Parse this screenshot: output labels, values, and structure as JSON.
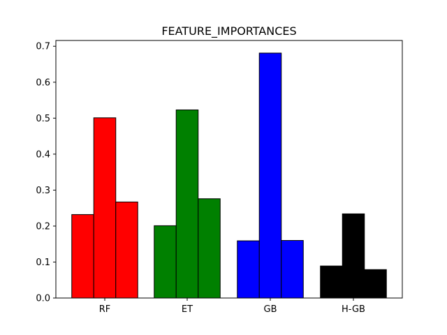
{
  "chart_data": {
    "type": "bar",
    "title": "FEATURE_IMPORTANCES",
    "xlabel": "",
    "ylabel": "",
    "categories": [
      "RF",
      "ET",
      "GB",
      "H-GB"
    ],
    "bars_per_group": 3,
    "groups": [
      {
        "category": "RF",
        "color": "#ff0000",
        "values": [
          0.232,
          0.501,
          0.267
        ]
      },
      {
        "category": "ET",
        "color": "#008000",
        "values": [
          0.201,
          0.523,
          0.276
        ]
      },
      {
        "category": "GB",
        "color": "#0000ff",
        "values": [
          0.159,
          0.681,
          0.16
        ]
      },
      {
        "category": "H-GB",
        "color": "#000000",
        "values": [
          0.089,
          0.234,
          0.079
        ]
      }
    ],
    "ylim": [
      0,
      0.716
    ],
    "yticks": [
      "0.0",
      "0.1",
      "0.2",
      "0.3",
      "0.4",
      "0.5",
      "0.6",
      "0.7"
    ],
    "grid": false,
    "legend": "none",
    "bar_edge_color": "#000000"
  }
}
